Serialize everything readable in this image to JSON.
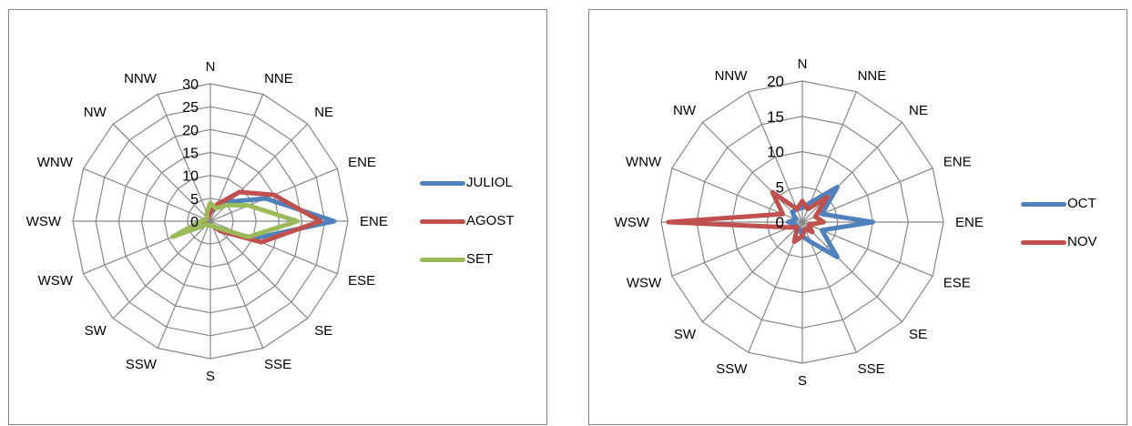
{
  "chart_data": [
    {
      "type": "radar",
      "categories": [
        "N",
        "NNE",
        "NE",
        "ENE",
        "ENE",
        "ESE",
        "SE",
        "SSE",
        "S",
        "SSW",
        "SW",
        "WSW",
        "WSW",
        "WNW",
        "NW",
        "NNW"
      ],
      "radial_ticks": [
        "0",
        "5",
        "10",
        "15",
        "20",
        "25",
        "30"
      ],
      "rmax": 30,
      "grid": true,
      "legend_position": "right",
      "series": [
        {
          "name": "JULIOL",
          "color": "#4f81bd",
          "values": [
            2,
            3,
            6,
            13,
            27,
            10,
            2,
            1,
            1,
            1,
            1,
            1,
            2,
            1,
            1,
            1
          ]
        },
        {
          "name": "AGOST",
          "color": "#c0504d",
          "values": [
            2,
            4,
            9,
            15,
            24,
            12,
            3,
            1,
            1,
            1,
            1,
            1,
            2,
            1,
            1,
            1
          ]
        },
        {
          "name": "SET",
          "color": "#9bbb59",
          "values": [
            4,
            3,
            5,
            9,
            19,
            9,
            2,
            1,
            1,
            1,
            1,
            9,
            2,
            1,
            1,
            2
          ]
        }
      ]
    },
    {
      "type": "radar",
      "categories": [
        "N",
        "NNE",
        "NE",
        "ENE",
        "ENE",
        "ESE",
        "SE",
        "SSE",
        "S",
        "SSW",
        "SW",
        "WSW",
        "WSW",
        "WNW",
        "NW",
        "NNW"
      ],
      "radial_ticks": [
        "0",
        "5",
        "10",
        "15",
        "20"
      ],
      "rmax": 20,
      "grid": true,
      "legend_position": "right",
      "series": [
        {
          "name": "OCT",
          "color": "#4f81bd",
          "values": [
            2,
            3,
            7,
            3,
            10,
            3,
            7,
            3,
            2,
            1,
            1,
            1,
            2,
            1,
            2,
            2
          ]
        },
        {
          "name": "NOV",
          "color": "#c0504d",
          "values": [
            3,
            2,
            5,
            2,
            3,
            1,
            2,
            1,
            2,
            3,
            1,
            2,
            19,
            3,
            6,
            2
          ]
        }
      ]
    }
  ]
}
